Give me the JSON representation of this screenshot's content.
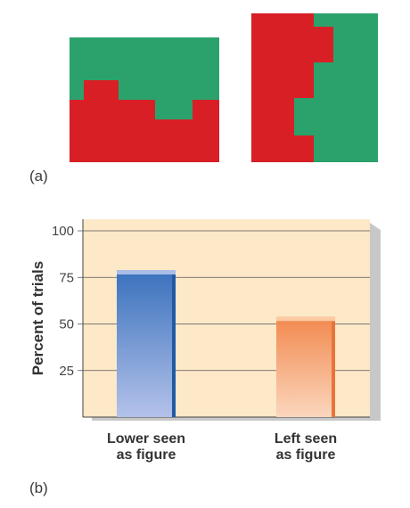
{
  "panel_a_label": "(a)",
  "panel_b_label": "(b)",
  "colors": {
    "green": "#2ba26c",
    "red": "#d81f26",
    "plot_bg": "#fde8c8",
    "lower_bar": "#3d74be",
    "left_bar": "#f18a52"
  },
  "chart_data": {
    "type": "bar",
    "categories": [
      "Lower seen as figure",
      "Left seen as figure"
    ],
    "category_lines": [
      [
        "Lower seen",
        "as figure"
      ],
      [
        "Left seen",
        "as figure"
      ]
    ],
    "values": [
      78,
      53
    ],
    "title": "",
    "xlabel": "",
    "ylabel": "Percent of trials",
    "ylim": [
      0,
      100
    ],
    "yticks": [
      25,
      50,
      75,
      100
    ],
    "grid": true
  }
}
